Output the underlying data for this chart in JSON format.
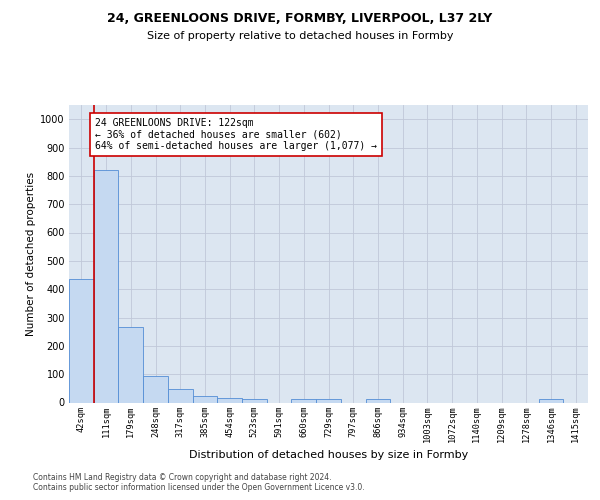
{
  "title_line1": "24, GREENLOONS DRIVE, FORMBY, LIVERPOOL, L37 2LY",
  "title_line2": "Size of property relative to detached houses in Formby",
  "xlabel": "Distribution of detached houses by size in Formby",
  "ylabel": "Number of detached properties",
  "categories": [
    "42sqm",
    "111sqm",
    "179sqm",
    "248sqm",
    "317sqm",
    "385sqm",
    "454sqm",
    "523sqm",
    "591sqm",
    "660sqm",
    "729sqm",
    "797sqm",
    "866sqm",
    "934sqm",
    "1003sqm",
    "1072sqm",
    "1140sqm",
    "1209sqm",
    "1278sqm",
    "1346sqm",
    "1415sqm"
  ],
  "bar_heights": [
    435,
    820,
    265,
    93,
    48,
    22,
    16,
    11,
    0,
    11,
    11,
    0,
    11,
    0,
    0,
    0,
    0,
    0,
    0,
    11,
    0
  ],
  "bar_color": "#c5d9f1",
  "bar_edge_color": "#538dd5",
  "marker_line_color": "#cc0000",
  "annotation_text": "24 GREENLOONS DRIVE: 122sqm\n← 36% of detached houses are smaller (602)\n64% of semi-detached houses are larger (1,077) →",
  "annotation_box_color": "#ffffff",
  "annotation_box_edge_color": "#cc0000",
  "ylim": [
    0,
    1050
  ],
  "yticks": [
    0,
    100,
    200,
    300,
    400,
    500,
    600,
    700,
    800,
    900,
    1000
  ],
  "footer_text": "Contains HM Land Registry data © Crown copyright and database right 2024.\nContains public sector information licensed under the Open Government Licence v3.0.",
  "background_color": "#ffffff",
  "grid_color": "#c0c8d8",
  "axis_bg_color": "#dce6f1"
}
